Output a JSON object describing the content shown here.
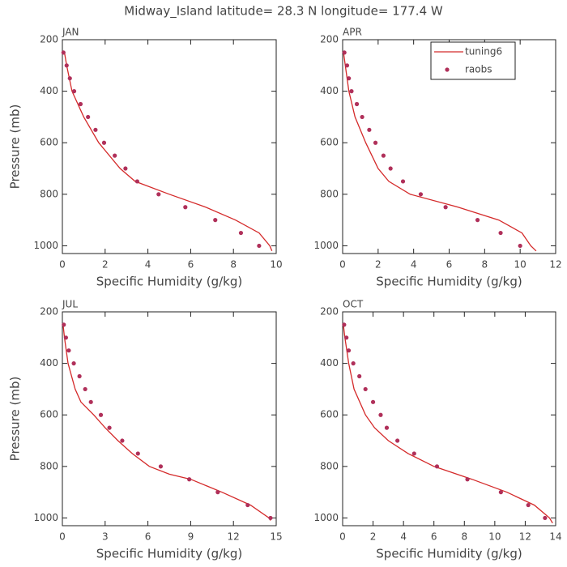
{
  "title": "Midway_Island  latitude= 28.3 N longitude= 177.4 W",
  "chart_data": [
    {
      "type": "line",
      "title": "JAN",
      "xlabel": "Specific Humidity (g/kg)",
      "ylabel": "Pressure (mb)",
      "xlim": [
        0,
        10
      ],
      "xticks": [
        0,
        2,
        4,
        6,
        8,
        10
      ],
      "ylim": [
        1030,
        200
      ],
      "yticks": [
        200,
        400,
        600,
        800,
        1000
      ],
      "series": [
        {
          "name": "tuning6",
          "color": "#d42a2a",
          "marker": "line",
          "x": [
            0.1,
            0.2,
            0.45,
            1.0,
            1.7,
            2.7,
            3.4,
            5.0,
            6.7,
            8.1,
            9.2,
            9.7,
            9.8
          ],
          "y": [
            250,
            300,
            400,
            500,
            600,
            700,
            750,
            800,
            850,
            900,
            950,
            1000,
            1020
          ]
        },
        {
          "name": "raobs",
          "color": "#b0305a",
          "marker": "dot",
          "x": [
            0.05,
            0.2,
            0.35,
            0.55,
            0.85,
            1.2,
            1.55,
            1.95,
            2.45,
            2.95,
            3.5,
            4.5,
            5.75,
            7.15,
            8.35,
            9.2
          ],
          "y": [
            250,
            300,
            350,
            400,
            450,
            500,
            550,
            600,
            650,
            700,
            750,
            800,
            850,
            900,
            950,
            1000
          ]
        }
      ]
    },
    {
      "type": "line",
      "title": "APR",
      "xlabel": "Specific Humidity (g/kg)",
      "legend": "upper right",
      "xlim": [
        0,
        12
      ],
      "xticks": [
        0,
        2,
        4,
        6,
        8,
        10,
        12
      ],
      "ylim": [
        1030,
        200
      ],
      "yticks": [
        200,
        400,
        600,
        800,
        1000
      ],
      "series": [
        {
          "name": "tuning6",
          "color": "#d42a2a",
          "marker": "line",
          "x": [
            0.05,
            0.15,
            0.35,
            0.7,
            1.3,
            2.0,
            2.6,
            3.8,
            6.5,
            8.8,
            10.1,
            10.6,
            10.9
          ],
          "y": [
            250,
            300,
            400,
            500,
            600,
            700,
            750,
            800,
            850,
            900,
            950,
            1000,
            1020
          ]
        },
        {
          "name": "raobs",
          "color": "#b0305a",
          "marker": "dot",
          "x": [
            0.1,
            0.25,
            0.35,
            0.5,
            0.8,
            1.1,
            1.5,
            1.85,
            2.3,
            2.7,
            3.4,
            4.4,
            5.8,
            7.6,
            8.9,
            10.0
          ],
          "y": [
            250,
            300,
            350,
            400,
            450,
            500,
            550,
            600,
            650,
            700,
            750,
            800,
            850,
            900,
            950,
            1000
          ]
        }
      ]
    },
    {
      "type": "line",
      "title": "JUL",
      "xlabel": "Specific Humidity (g/kg)",
      "ylabel": "Pressure (mb)",
      "xlim": [
        0,
        15
      ],
      "xticks": [
        0,
        3,
        6,
        9,
        12,
        15
      ],
      "ylim": [
        1030,
        200
      ],
      "yticks": [
        200,
        400,
        600,
        800,
        1000
      ],
      "series": [
        {
          "name": "tuning6",
          "color": "#d42a2a",
          "marker": "line",
          "x": [
            0.05,
            0.15,
            0.4,
            0.9,
            1.3,
            2.2,
            3.0,
            3.9,
            4.9,
            6.1,
            7.5,
            9.0,
            11.2,
            13.2,
            14.5,
            14.6
          ],
          "y": [
            250,
            300,
            400,
            500,
            550,
            600,
            650,
            700,
            750,
            800,
            830,
            850,
            900,
            950,
            1000,
            1010
          ]
        },
        {
          "name": "raobs",
          "color": "#b0305a",
          "marker": "dot",
          "x": [
            0.1,
            0.25,
            0.45,
            0.8,
            1.2,
            1.6,
            2.0,
            2.7,
            3.3,
            4.2,
            5.3,
            6.9,
            8.9,
            10.9,
            13.0,
            14.6
          ],
          "y": [
            250,
            300,
            350,
            400,
            450,
            500,
            550,
            600,
            650,
            700,
            750,
            800,
            850,
            900,
            950,
            1000
          ]
        }
      ]
    },
    {
      "type": "line",
      "title": "OCT",
      "xlabel": "Specific Humidity (g/kg)",
      "xlim": [
        0,
        14
      ],
      "xticks": [
        0,
        2,
        4,
        6,
        8,
        10,
        12,
        14
      ],
      "ylim": [
        1030,
        200
      ],
      "yticks": [
        200,
        400,
        600,
        800,
        1000
      ],
      "series": [
        {
          "name": "tuning6",
          "color": "#d42a2a",
          "marker": "line",
          "x": [
            0.05,
            0.15,
            0.4,
            0.75,
            1.5,
            2.1,
            3.0,
            4.3,
            6.0,
            8.5,
            10.8,
            12.6,
            13.6,
            13.8
          ],
          "y": [
            250,
            300,
            400,
            500,
            600,
            650,
            700,
            750,
            800,
            850,
            900,
            950,
            1000,
            1020
          ]
        },
        {
          "name": "raobs",
          "color": "#b0305a",
          "marker": "dot",
          "x": [
            0.1,
            0.25,
            0.4,
            0.7,
            1.1,
            1.5,
            2.0,
            2.5,
            2.9,
            3.6,
            4.7,
            6.2,
            8.2,
            10.4,
            12.2,
            13.3
          ],
          "y": [
            250,
            300,
            350,
            400,
            450,
            500,
            550,
            600,
            650,
            700,
            750,
            800,
            850,
            900,
            950,
            1000
          ]
        }
      ]
    }
  ]
}
